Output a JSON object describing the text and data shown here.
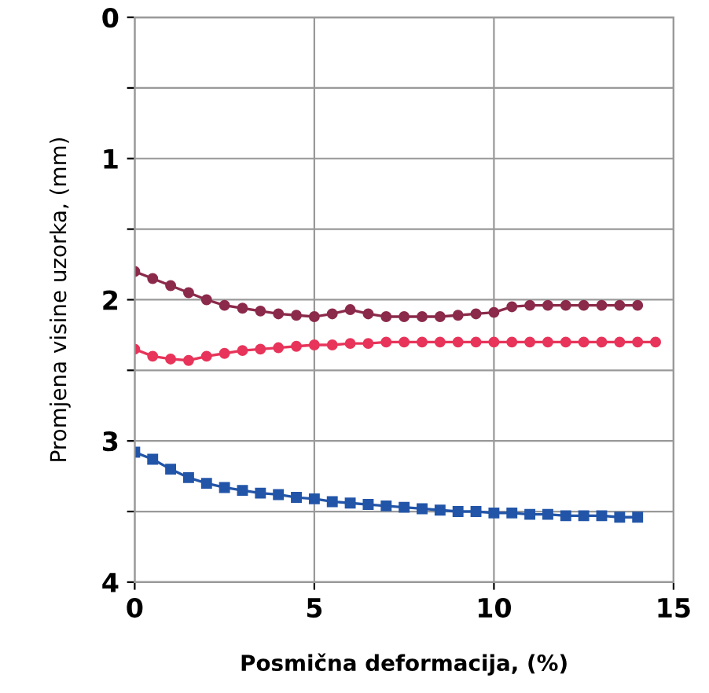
{
  "chart_data": {
    "type": "line",
    "xlabel": "Posmična deformacija, (%)",
    "ylabel": "Promjena visine uzorka, (mm)",
    "xlim": [
      0,
      15
    ],
    "xticks": [
      0,
      5,
      10,
      15
    ],
    "ylim": [
      4,
      0
    ],
    "yticks": [
      0,
      {
        "value": 0.5,
        "label": null
      },
      1,
      {
        "value": 1.5,
        "label": null
      },
      2,
      {
        "value": 2.5,
        "label": null
      },
      3,
      {
        "value": 3.5,
        "label": null
      },
      4
    ],
    "grid": true,
    "legend": false,
    "series": [
      {
        "color": "#8b2a4a",
        "marker": "circle",
        "x": [
          0,
          0.5,
          1,
          1.5,
          2,
          2.5,
          3,
          3.5,
          4,
          4.5,
          5,
          5.5,
          6,
          6.5,
          7,
          7.5,
          8,
          8.5,
          9,
          9.5,
          10,
          10.5,
          11,
          11.5,
          12,
          12.5,
          13,
          13.5,
          14
        ],
        "values": [
          1.8,
          1.85,
          1.9,
          1.95,
          2.0,
          2.04,
          2.06,
          2.08,
          2.1,
          2.11,
          2.12,
          2.1,
          2.07,
          2.1,
          2.12,
          2.12,
          2.12,
          2.12,
          2.11,
          2.1,
          2.09,
          2.05,
          2.04,
          2.04,
          2.04,
          2.04,
          2.04,
          2.04,
          2.04
        ]
      },
      {
        "color": "#e8345a",
        "marker": "circle",
        "x": [
          0,
          0.5,
          1,
          1.5,
          2,
          2.5,
          3,
          3.5,
          4,
          4.5,
          5,
          5.5,
          6,
          6.5,
          7,
          7.5,
          8,
          8.5,
          9,
          9.5,
          10,
          10.5,
          11,
          11.5,
          12,
          12.5,
          13,
          13.5,
          14,
          14.5
        ],
        "values": [
          2.35,
          2.4,
          2.42,
          2.43,
          2.4,
          2.38,
          2.36,
          2.35,
          2.34,
          2.33,
          2.32,
          2.32,
          2.31,
          2.31,
          2.3,
          2.3,
          2.3,
          2.3,
          2.3,
          2.3,
          2.3,
          2.3,
          2.3,
          2.3,
          2.3,
          2.3,
          2.3,
          2.3,
          2.3,
          2.3
        ]
      },
      {
        "color": "#2255a8",
        "marker": "square",
        "x": [
          0,
          0.5,
          1,
          1.5,
          2,
          2.5,
          3,
          3.5,
          4,
          4.5,
          5,
          5.5,
          6,
          6.5,
          7,
          7.5,
          8,
          8.5,
          9,
          9.5,
          10,
          10.5,
          11,
          11.5,
          12,
          12.5,
          13,
          13.5,
          14
        ],
        "values": [
          3.08,
          3.13,
          3.2,
          3.26,
          3.3,
          3.33,
          3.35,
          3.37,
          3.38,
          3.4,
          3.41,
          3.43,
          3.44,
          3.45,
          3.46,
          3.47,
          3.48,
          3.49,
          3.5,
          3.5,
          3.51,
          3.51,
          3.52,
          3.52,
          3.53,
          3.53,
          3.53,
          3.54,
          3.54
        ]
      }
    ]
  }
}
